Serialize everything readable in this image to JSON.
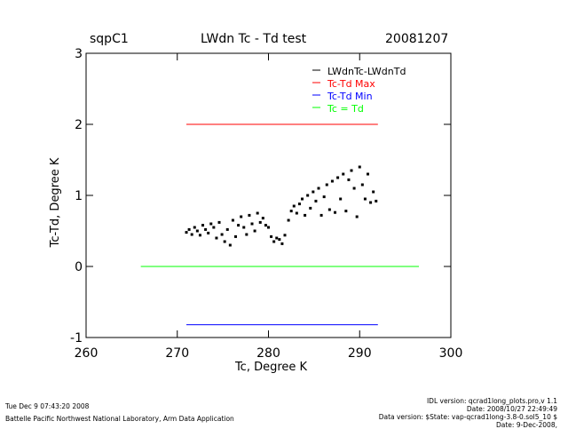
{
  "header": {
    "site": "sqpC1",
    "title": "LWdn Tc - Td test",
    "date": "20081207"
  },
  "footer": {
    "timestamp": "Tue Dec  9 07:43:20 2008",
    "lab": "Battelle Pacific Northwest National Laboratory, Arm Data Application",
    "idl_version": "IDL version: qcrad1long_plots.pro,v 1.1",
    "idl_date": "Date: 2008/10/27 22:49:49",
    "data_version": "Data version: $State: vap-qcrad1long-3.8-0.sol5_10 $",
    "data_date": "Date: 9-Dec-2008,"
  },
  "colors": {
    "data": "#000000",
    "max": "#ff0000",
    "min": "#0000ff",
    "equal": "#00ff00"
  },
  "chart_data": {
    "type": "scatter",
    "title": "LWdn Tc - Td test",
    "xlabel": "Tc, Degree K",
    "ylabel": "Tc-Td, Degree K",
    "xlim": [
      260,
      300
    ],
    "ylim": [
      -1,
      3
    ],
    "xticks": [
      260,
      270,
      280,
      290,
      300
    ],
    "yticks": [
      -1,
      0,
      1,
      2,
      3
    ],
    "legend_position": "top-right",
    "series": [
      {
        "name": "LWdnTc-LWdnTd",
        "kind": "points",
        "color": "#000000",
        "points": [
          [
            271.0,
            0.48
          ],
          [
            271.3,
            0.52
          ],
          [
            271.6,
            0.45
          ],
          [
            271.9,
            0.55
          ],
          [
            272.2,
            0.5
          ],
          [
            272.5,
            0.44
          ],
          [
            272.8,
            0.58
          ],
          [
            273.1,
            0.52
          ],
          [
            273.4,
            0.47
          ],
          [
            273.7,
            0.6
          ],
          [
            274.0,
            0.55
          ],
          [
            274.3,
            0.4
          ],
          [
            274.6,
            0.62
          ],
          [
            274.9,
            0.45
          ],
          [
            275.2,
            0.35
          ],
          [
            275.5,
            0.52
          ],
          [
            275.8,
            0.3
          ],
          [
            276.1,
            0.65
          ],
          [
            276.4,
            0.42
          ],
          [
            276.7,
            0.58
          ],
          [
            277.0,
            0.7
          ],
          [
            277.3,
            0.55
          ],
          [
            277.6,
            0.45
          ],
          [
            277.9,
            0.72
          ],
          [
            278.2,
            0.6
          ],
          [
            278.5,
            0.5
          ],
          [
            278.8,
            0.75
          ],
          [
            279.1,
            0.62
          ],
          [
            279.4,
            0.68
          ],
          [
            279.7,
            0.58
          ],
          [
            280.0,
            0.55
          ],
          [
            280.3,
            0.42
          ],
          [
            280.6,
            0.35
          ],
          [
            280.9,
            0.4
          ],
          [
            281.2,
            0.38
          ],
          [
            281.5,
            0.32
          ],
          [
            281.8,
            0.44
          ],
          [
            282.2,
            0.65
          ],
          [
            282.5,
            0.78
          ],
          [
            282.8,
            0.85
          ],
          [
            283.1,
            0.75
          ],
          [
            283.4,
            0.88
          ],
          [
            283.7,
            0.95
          ],
          [
            284.0,
            0.72
          ],
          [
            284.3,
            1.0
          ],
          [
            284.6,
            0.82
          ],
          [
            284.9,
            1.05
          ],
          [
            285.2,
            0.92
          ],
          [
            285.5,
            1.1
          ],
          [
            285.8,
            0.72
          ],
          [
            286.1,
            0.98
          ],
          [
            286.4,
            1.15
          ],
          [
            286.7,
            0.8
          ],
          [
            287.0,
            1.2
          ],
          [
            287.3,
            0.76
          ],
          [
            287.6,
            1.25
          ],
          [
            287.9,
            0.95
          ],
          [
            288.2,
            1.3
          ],
          [
            288.5,
            0.78
          ],
          [
            288.8,
            1.22
          ],
          [
            289.1,
            1.35
          ],
          [
            289.4,
            1.1
          ],
          [
            289.7,
            0.7
          ],
          [
            290.0,
            1.4
          ],
          [
            290.3,
            1.15
          ],
          [
            290.6,
            0.95
          ],
          [
            290.9,
            1.3
          ],
          [
            291.2,
            0.9
          ],
          [
            291.5,
            1.05
          ],
          [
            291.8,
            0.92
          ]
        ]
      },
      {
        "name": "Tc-Td Max",
        "kind": "line",
        "color": "#ff0000",
        "x": [
          271,
          292
        ],
        "y": [
          2.0,
          2.0
        ]
      },
      {
        "name": "Tc-Td Min",
        "kind": "line",
        "color": "#0000ff",
        "x": [
          271,
          292
        ],
        "y": [
          -0.82,
          -0.82
        ]
      },
      {
        "name": "Tc = Td",
        "kind": "line",
        "color": "#00ff00",
        "x": [
          266,
          296.5
        ],
        "y": [
          0.0,
          0.0
        ]
      }
    ]
  }
}
